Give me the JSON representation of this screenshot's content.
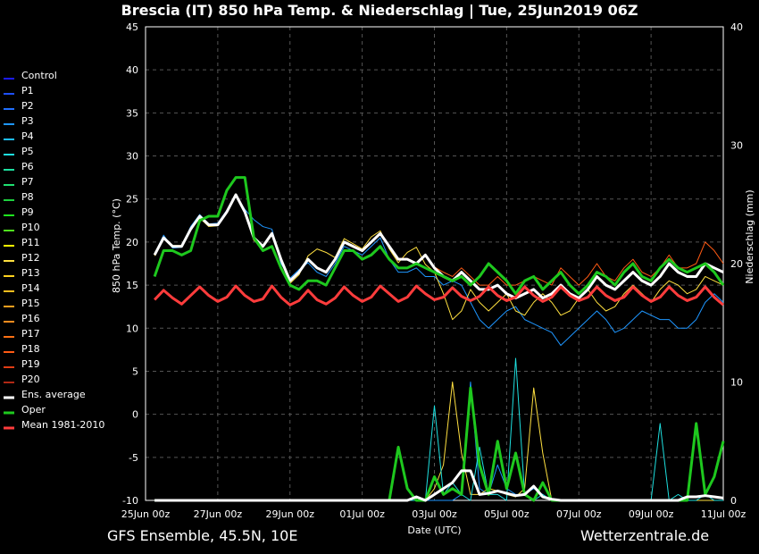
{
  "title": "Brescia  (IT)  850 hPa Temp. & Niederschlag | Tue, 25Jun2019 06Z",
  "footer_left": "GFS Ensemble, 45.5N, 10E",
  "footer_right": "Wetterzentrale.de",
  "chart_data": {
    "type": "line",
    "xlabel": "Date (UTC)",
    "ylabel_left": "850 hPa Temp. (°C)",
    "ylabel_right": "Niederschlag (mm)",
    "ylim_left": [
      -10,
      45
    ],
    "ylim_right": [
      0,
      40
    ],
    "xlim_hours": [
      0,
      384
    ],
    "x_ticks": [
      "25Jun 00z",
      "27Jun 00z",
      "29Jun 00z",
      "01Jul 00z",
      "03Jul 00z",
      "05Jul 00z",
      "07Jul 00z",
      "09Jul 00z",
      "11Jul 00z"
    ],
    "y_ticks_left": [
      45,
      40,
      35,
      30,
      25,
      20,
      15,
      10,
      5,
      0,
      -5,
      -10
    ],
    "y_ticks_right": [
      40,
      30,
      20,
      10,
      0
    ],
    "grid": true,
    "legend_position": "left",
    "colors": {
      "Control": "#1b1bff",
      "P1": "#1e50ff",
      "P2": "#2170ff",
      "P3": "#1e96ff",
      "P4": "#1ebeff",
      "P5": "#1ee0e0",
      "P6": "#1ee0a0",
      "P7": "#1ee070",
      "P8": "#1ed040",
      "P9": "#1ee61e",
      "P10": "#50e61e",
      "P11": "#ffff00",
      "P12": "#ffe040",
      "P13": "#ffd21e",
      "P14": "#ffbe1e",
      "P15": "#ffa01e",
      "P16": "#ff8c1e",
      "P17": "#ff7014",
      "P18": "#ff5a14",
      "P19": "#e03c14",
      "P20": "#b02814",
      "Ens. average": "#ffffff",
      "Oper": "#1ec81e",
      "Mean 1981-2010": "#ff3c3c"
    },
    "legend": [
      "Control",
      "P1",
      "P2",
      "P3",
      "P4",
      "P5",
      "P6",
      "P7",
      "P8",
      "P9",
      "P10",
      "P11",
      "P12",
      "P13",
      "P14",
      "P15",
      "P16",
      "P17",
      "P18",
      "P19",
      "P20",
      "Ens. average",
      "Oper",
      "Mean 1981-2010"
    ],
    "x_hours": [
      6,
      12,
      18,
      24,
      30,
      36,
      42,
      48,
      54,
      60,
      66,
      72,
      78,
      84,
      90,
      96,
      102,
      108,
      114,
      120,
      126,
      132,
      138,
      144,
      150,
      156,
      162,
      168,
      174,
      180,
      186,
      192,
      198,
      204,
      210,
      216,
      222,
      228,
      234,
      240,
      246,
      252,
      258,
      264,
      270,
      276,
      282,
      288,
      294,
      300,
      306,
      312,
      318,
      324,
      330,
      336,
      342,
      348,
      354,
      360,
      366,
      372,
      378,
      384
    ],
    "temp_series": [
      {
        "name": "Ens. average",
        "values": [
          18.5,
          20.5,
          19.5,
          19.5,
          21.5,
          23,
          22,
          22,
          23.5,
          25.5,
          23.5,
          20.5,
          19.5,
          21,
          18,
          15.5,
          16.5,
          18,
          17,
          16.5,
          18,
          20,
          19.5,
          19,
          20,
          21,
          19.5,
          18,
          18,
          17.5,
          18.5,
          17,
          16,
          15.5,
          16.5,
          15.5,
          14.5,
          14.5,
          15,
          14,
          13.5,
          14,
          14.5,
          13.5,
          14,
          15,
          14,
          13.5,
          14.5,
          16,
          15,
          14.5,
          15.5,
          16.5,
          15.5,
          15,
          16,
          17.5,
          16.5,
          16,
          16,
          17.5,
          17,
          16.5
        ]
      },
      {
        "name": "Oper",
        "values": [
          16,
          19,
          19,
          18.5,
          19,
          22.5,
          23,
          23,
          26,
          27.5,
          27.5,
          20.5,
          19,
          19.5,
          17,
          15,
          14.5,
          15.5,
          15.5,
          15,
          17,
          19,
          19,
          18,
          18.5,
          19.5,
          18,
          17,
          17,
          17.5,
          17,
          16.5,
          16,
          15.5,
          16,
          15,
          16,
          17.5,
          16.5,
          15.5,
          14,
          15.5,
          16,
          14.5,
          15.5,
          16.5,
          15,
          14,
          15,
          16.5,
          16,
          15,
          16.5,
          17.5,
          16,
          15.5,
          17,
          18,
          17,
          16.5,
          17,
          17.5,
          16.5,
          15
        ]
      },
      {
        "name": "Mean 1981-2010",
        "values": [
          13.3,
          14.4,
          13.5,
          12.8,
          13.8,
          14.8,
          13.8,
          13.1,
          13.6,
          14.9,
          13.8,
          13.1,
          13.4,
          14.9,
          13.6,
          12.7,
          13.2,
          14.4,
          13.3,
          12.8,
          13.5,
          14.8,
          13.8,
          13.1,
          13.6,
          14.9,
          14.0,
          13.1,
          13.6,
          14.9,
          14.0,
          13.3,
          13.6,
          14.7,
          13.7,
          13.2,
          13.7,
          14.8,
          13.8,
          13.2,
          13.6,
          14.8,
          13.8,
          13.1,
          13.6,
          14.8,
          13.8,
          13.2,
          13.6,
          14.8,
          13.8,
          13.2,
          13.6,
          14.8,
          13.8,
          13.1,
          13.6,
          14.8,
          13.8,
          13.2,
          13.6,
          14.8,
          13.6,
          12.7
        ]
      },
      {
        "name": "P3",
        "values": [
          18.6,
          20.8,
          19.3,
          19.4,
          21.8,
          23.2,
          22.1,
          22.2,
          23.7,
          25.4,
          23.8,
          22.6,
          21.8,
          21.5,
          17.5,
          15.8,
          16.8,
          17.6,
          16.5,
          16,
          17.5,
          19.5,
          19,
          18.5,
          19.5,
          20.5,
          18,
          16.5,
          16.5,
          17,
          16,
          16,
          15,
          15.5,
          15,
          13,
          11,
          10,
          11,
          12,
          12.5,
          11,
          10.5,
          10,
          9.5,
          8,
          9,
          10,
          11,
          12,
          11,
          9.5,
          10,
          11,
          12,
          11.5,
          11,
          11,
          10,
          10,
          11,
          13,
          14,
          13
        ]
      },
      {
        "name": "P12",
        "values": [
          18.4,
          20.4,
          19.6,
          19.6,
          21.4,
          22.8,
          21.8,
          21.9,
          23.4,
          25.6,
          23.4,
          20.2,
          19.4,
          20.8,
          18.2,
          15.2,
          16.2,
          18.4,
          19.2,
          18.8,
          18.2,
          20.4,
          19.8,
          19.2,
          20.6,
          21.3,
          19.2,
          17.6,
          18.8,
          19.4,
          17.4,
          16.5,
          14,
          11,
          12,
          14.5,
          13,
          12,
          13,
          14,
          12,
          11.5,
          13,
          14,
          13,
          11.5,
          12,
          13.5,
          14.5,
          13,
          12,
          12.5,
          14,
          15,
          14,
          13,
          14.5,
          15.5,
          15,
          14,
          14.5,
          16,
          15.5,
          15
        ]
      },
      {
        "name": "P18",
        "values": [
          18.5,
          20.5,
          19.5,
          19.5,
          21.6,
          23.1,
          22,
          22.1,
          23.6,
          25.5,
          23.5,
          20.6,
          19.6,
          21.1,
          18.1,
          15.6,
          16.6,
          18.1,
          17.1,
          16.6,
          18.1,
          20.1,
          19.6,
          19.1,
          20.1,
          21.1,
          19.6,
          18.1,
          18.1,
          17.6,
          18.6,
          17.1,
          16.5,
          16,
          17,
          16,
          15,
          15,
          16,
          15,
          15,
          15.5,
          16,
          15.5,
          15,
          17,
          16,
          15,
          16,
          17.5,
          16,
          15.5,
          17,
          18,
          16.5,
          16,
          17,
          18.5,
          17,
          17,
          17.5,
          20,
          19,
          17.5
        ]
      }
    ],
    "precip_series": [
      {
        "name": "Oper",
        "values": [
          0,
          0,
          0,
          0,
          0,
          0,
          0,
          0,
          0,
          0,
          0,
          0,
          0,
          0,
          0,
          0,
          0,
          0,
          0,
          0,
          0,
          0,
          0,
          0,
          0,
          0,
          0,
          4.5,
          1,
          0,
          0,
          2,
          0.5,
          1,
          0.5,
          9.5,
          3,
          0.5,
          5,
          1,
          4,
          0.5,
          0,
          1.5,
          0,
          0,
          0,
          0,
          0,
          0,
          0,
          0,
          0,
          0,
          0,
          0,
          0,
          0,
          0,
          0,
          6.5,
          0.5,
          2,
          5
        ]
      },
      {
        "name": "Ens. average",
        "values": [
          0,
          0,
          0,
          0,
          0,
          0,
          0,
          0,
          0,
          0,
          0,
          0,
          0,
          0,
          0,
          0,
          0,
          0,
          0,
          0,
          0,
          0,
          0,
          0,
          0,
          0,
          0,
          0,
          0,
          0.3,
          0,
          0.5,
          1,
          1.5,
          2.5,
          2.5,
          0.5,
          0.6,
          0.8,
          0.6,
          0.4,
          0.5,
          1.2,
          0.3,
          0.1,
          0,
          0,
          0,
          0,
          0,
          0,
          0,
          0,
          0,
          0,
          0,
          0,
          0,
          0,
          0.3,
          0.3,
          0.4,
          0.3,
          0.2
        ]
      },
      {
        "name": "P3",
        "values": [
          0,
          0,
          0,
          0,
          0,
          0,
          0,
          0,
          0,
          0,
          0,
          0,
          0,
          0,
          0,
          0,
          0,
          0,
          0,
          0,
          0,
          0,
          0,
          0,
          0,
          0,
          0,
          0,
          0,
          0,
          0,
          0,
          0,
          0,
          0.5,
          10,
          1,
          0.5,
          3,
          1,
          0.5,
          0.5,
          1,
          0.5,
          0,
          0,
          0,
          0,
          0,
          0,
          0,
          0,
          0,
          0,
          0,
          0,
          0,
          0,
          0,
          0,
          0,
          0,
          0,
          0
        ]
      },
      {
        "name": "P12",
        "values": [
          0,
          0,
          0,
          0,
          0,
          0,
          0,
          0,
          0,
          0,
          0,
          0,
          0,
          0,
          0,
          0,
          0,
          0,
          0,
          0,
          0,
          0,
          0,
          0,
          0,
          0,
          0,
          0,
          0,
          0,
          0,
          1,
          3,
          10,
          4,
          0.5,
          0.5,
          1,
          0.8,
          0.5,
          0.3,
          1,
          9.5,
          4,
          0,
          0,
          0,
          0,
          0,
          0,
          0,
          0,
          0,
          0,
          0,
          0,
          0,
          0,
          0,
          0,
          0,
          0,
          0,
          0
        ]
      },
      {
        "name": "P5",
        "values": [
          0,
          0,
          0,
          0,
          0,
          0,
          0,
          0,
          0,
          0,
          0,
          0,
          0,
          0,
          0,
          0,
          0,
          0,
          0,
          0,
          0,
          0,
          0,
          0,
          0,
          0,
          0,
          0,
          0,
          0,
          0,
          8,
          0.5,
          1.5,
          0.5,
          0,
          4.5,
          0.5,
          0.5,
          0,
          12,
          0.5,
          0,
          0.5,
          0,
          0,
          0,
          0,
          0,
          0,
          0,
          0,
          0,
          0,
          0,
          0,
          6.5,
          0,
          0.5,
          0,
          0,
          0.5,
          0,
          0
        ]
      }
    ]
  }
}
